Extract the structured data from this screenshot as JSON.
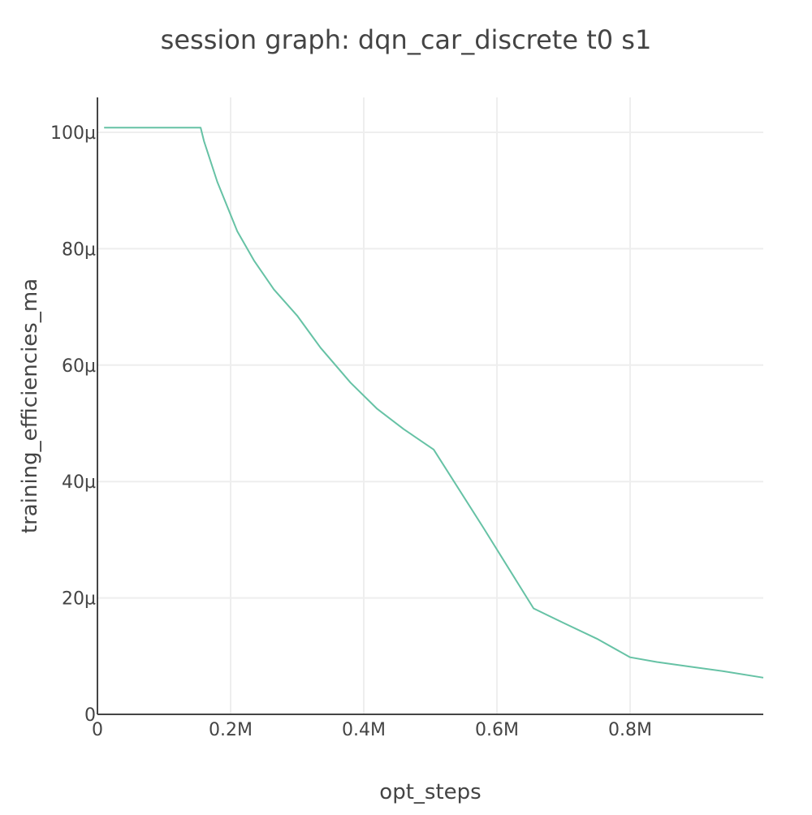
{
  "chart_data": {
    "type": "line",
    "title": "session graph: dqn_car_discrete t0 s1",
    "xlabel": "opt_steps",
    "ylabel": "training_efficiencies_ma",
    "xlim": [
      0,
      1000000
    ],
    "ylim": [
      0,
      0.000106
    ],
    "x_ticks": [
      {
        "value": 0,
        "label": "0"
      },
      {
        "value": 200000,
        "label": "0.2M"
      },
      {
        "value": 400000,
        "label": "0.4M"
      },
      {
        "value": 600000,
        "label": "0.6M"
      },
      {
        "value": 800000,
        "label": "0.8M"
      }
    ],
    "y_ticks": [
      {
        "value": 0,
        "label": "0"
      },
      {
        "value": 2e-05,
        "label": "20µ"
      },
      {
        "value": 4e-05,
        "label": "40µ"
      },
      {
        "value": 6e-05,
        "label": "60µ"
      },
      {
        "value": 8e-05,
        "label": "80µ"
      },
      {
        "value": 0.0001,
        "label": "100µ"
      }
    ],
    "grid": true,
    "legend": "none",
    "series": [
      {
        "color": "#66c2a5",
        "x": [
          10000,
          155000,
          160000,
          180000,
          210000,
          235000,
          265000,
          300000,
          335000,
          380000,
          420000,
          460000,
          505000,
          580000,
          655000,
          700000,
          750000,
          800000,
          840000,
          890000,
          940000,
          1000000
        ],
        "y": [
          0.0001008,
          0.0001008,
          9.85e-05,
          9.15e-05,
          8.3e-05,
          7.8e-05,
          7.3e-05,
          6.85e-05,
          6.3e-05,
          5.7e-05,
          5.25e-05,
          4.9e-05,
          4.55e-05,
          3.2e-05,
          1.82e-05,
          1.57e-05,
          1.3e-05,
          9.8e-06,
          9e-06,
          8.2e-06,
          7.4e-06,
          6.3e-06
        ]
      }
    ]
  }
}
